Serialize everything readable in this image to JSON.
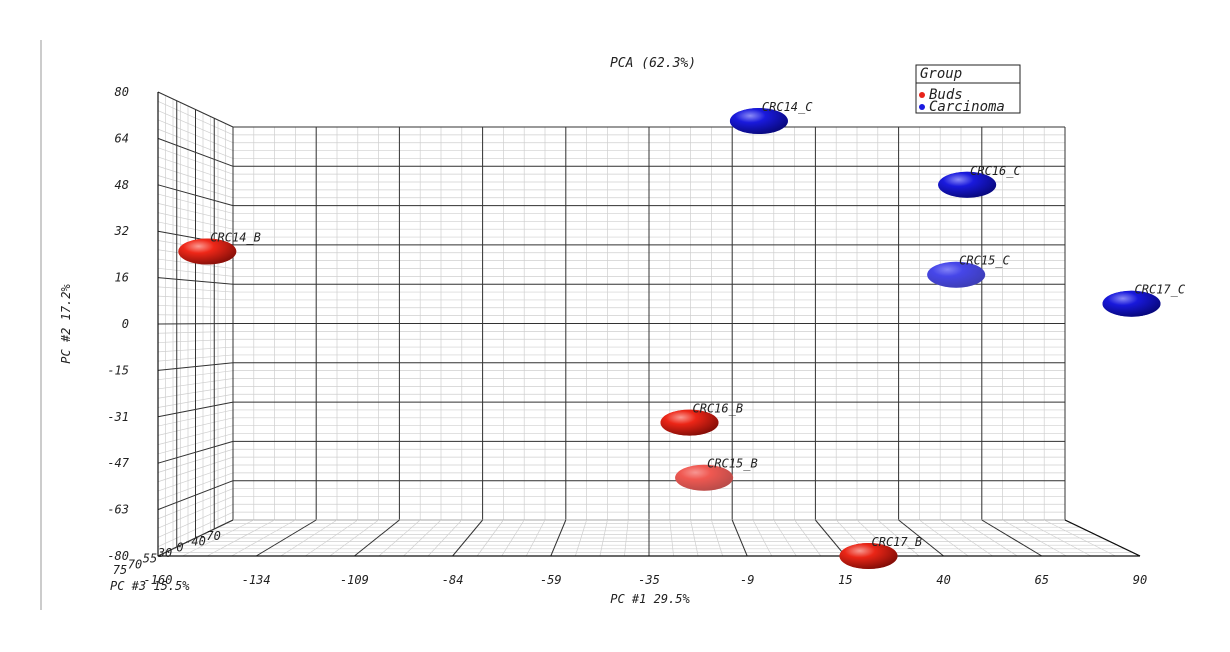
{
  "chart_data": {
    "type": "scatter",
    "title": "PCA (62.3%)",
    "xlabel": "PC #1 29.5%",
    "ylabel": "PC #2 17.2%",
    "zlabel": "PC #3 15.5%",
    "projection": "3d",
    "grid": true,
    "legend_position": "top-right",
    "xlim": [
      -160,
      90
    ],
    "ylim": [
      -80,
      80
    ],
    "x_ticks": [
      "-160",
      "-134",
      "-109",
      "-84",
      "-59",
      "-35",
      "-9",
      "15",
      "40",
      "65",
      "90"
    ],
    "y_ticks": [
      "80",
      "64",
      "48",
      "32",
      "16",
      "0",
      "-15",
      "-31",
      "-47",
      "-63",
      "-80"
    ],
    "z_ticks": [
      "-70",
      "-40",
      "0",
      "30",
      "55",
      "70",
      "75"
    ],
    "legend": {
      "title": "Group",
      "entries": [
        {
          "name": "Buds",
          "color": "#e8231a"
        },
        {
          "name": "Carcinoma",
          "color": "#1a1ae0"
        }
      ]
    },
    "points": [
      {
        "label": "CRC14_C",
        "group": "Carcinoma",
        "x": -7,
        "y": 70,
        "color": "#1818c8"
      },
      {
        "label": "CRC16_C",
        "group": "Carcinoma",
        "x": 50,
        "y": 48,
        "color": "#1818cc"
      },
      {
        "label": "CRC15_C",
        "group": "Carcinoma",
        "x": 47,
        "y": 17,
        "color": "#6a6af0"
      },
      {
        "label": "CRC17_C",
        "group": "Carcinoma",
        "x": 95,
        "y": 7,
        "color": "#1010c0"
      },
      {
        "label": "CRC14_B",
        "group": "Buds",
        "x": -158,
        "y": 25,
        "color": "#e8231a"
      },
      {
        "label": "CRC16_B",
        "group": "Buds",
        "x": -26,
        "y": -34,
        "color": "#d81810"
      },
      {
        "label": "CRC15_B",
        "group": "Buds",
        "x": -22,
        "y": -53,
        "color": "#f08080"
      },
      {
        "label": "CRC17_B",
        "group": "Buds",
        "x": 23,
        "y": -80,
        "color": "#c81810"
      }
    ]
  }
}
